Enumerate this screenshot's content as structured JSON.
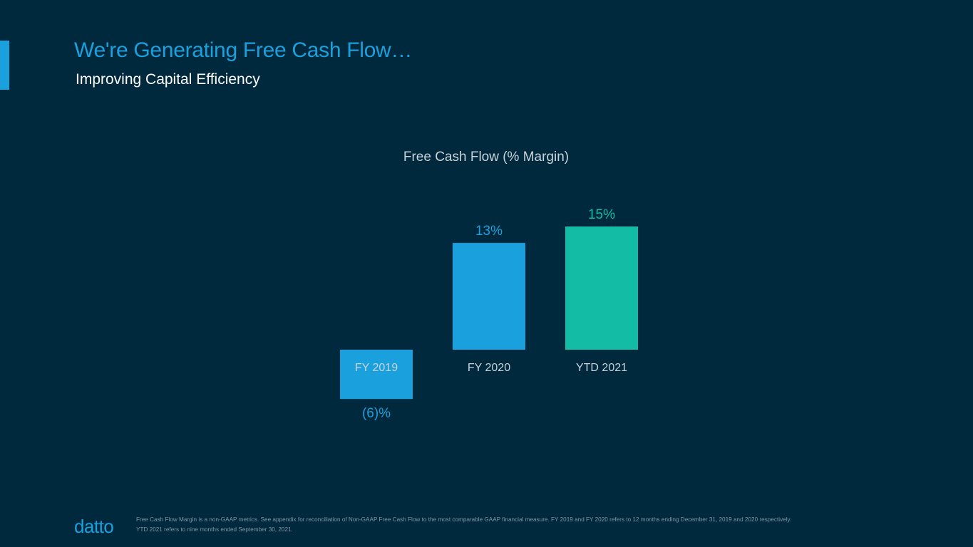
{
  "slide": {
    "title": "We're Generating Free Cash Flow…",
    "subtitle": "Improving Capital Efficiency"
  },
  "colors": {
    "background": "#00293d",
    "accent_blue": "#1aa0dc",
    "teal": "#12bca5",
    "text_light": "#c8d3da",
    "footnote": "#7f97a6"
  },
  "chart_data": {
    "type": "bar",
    "title": "Free Cash Flow (% Margin)",
    "xlabel": "",
    "ylabel": "",
    "categories": [
      "FY 2019",
      "FY 2020",
      "YTD 2021"
    ],
    "values": [
      -6,
      13,
      15
    ],
    "data_labels": [
      "(6)%",
      "13%",
      "15%"
    ],
    "bar_colors": [
      "#1aa0dc",
      "#1aa0dc",
      "#12bca5"
    ],
    "grid": false,
    "legend": "none"
  },
  "footer": {
    "logo": "datto",
    "footnote_line1": "Free Cash Flow Margin is a non-GAAP metrics. See appendix for reconciliation of Non-GAAP Free Cash Flow to the most comparable GAAP financial measure. FY 2019 and FY 2020  refers to 12 months ending December 31, 2019 and 2020 respectively.",
    "footnote_line2": "YTD 2021 refers to nine months ended September 30, 2021."
  }
}
